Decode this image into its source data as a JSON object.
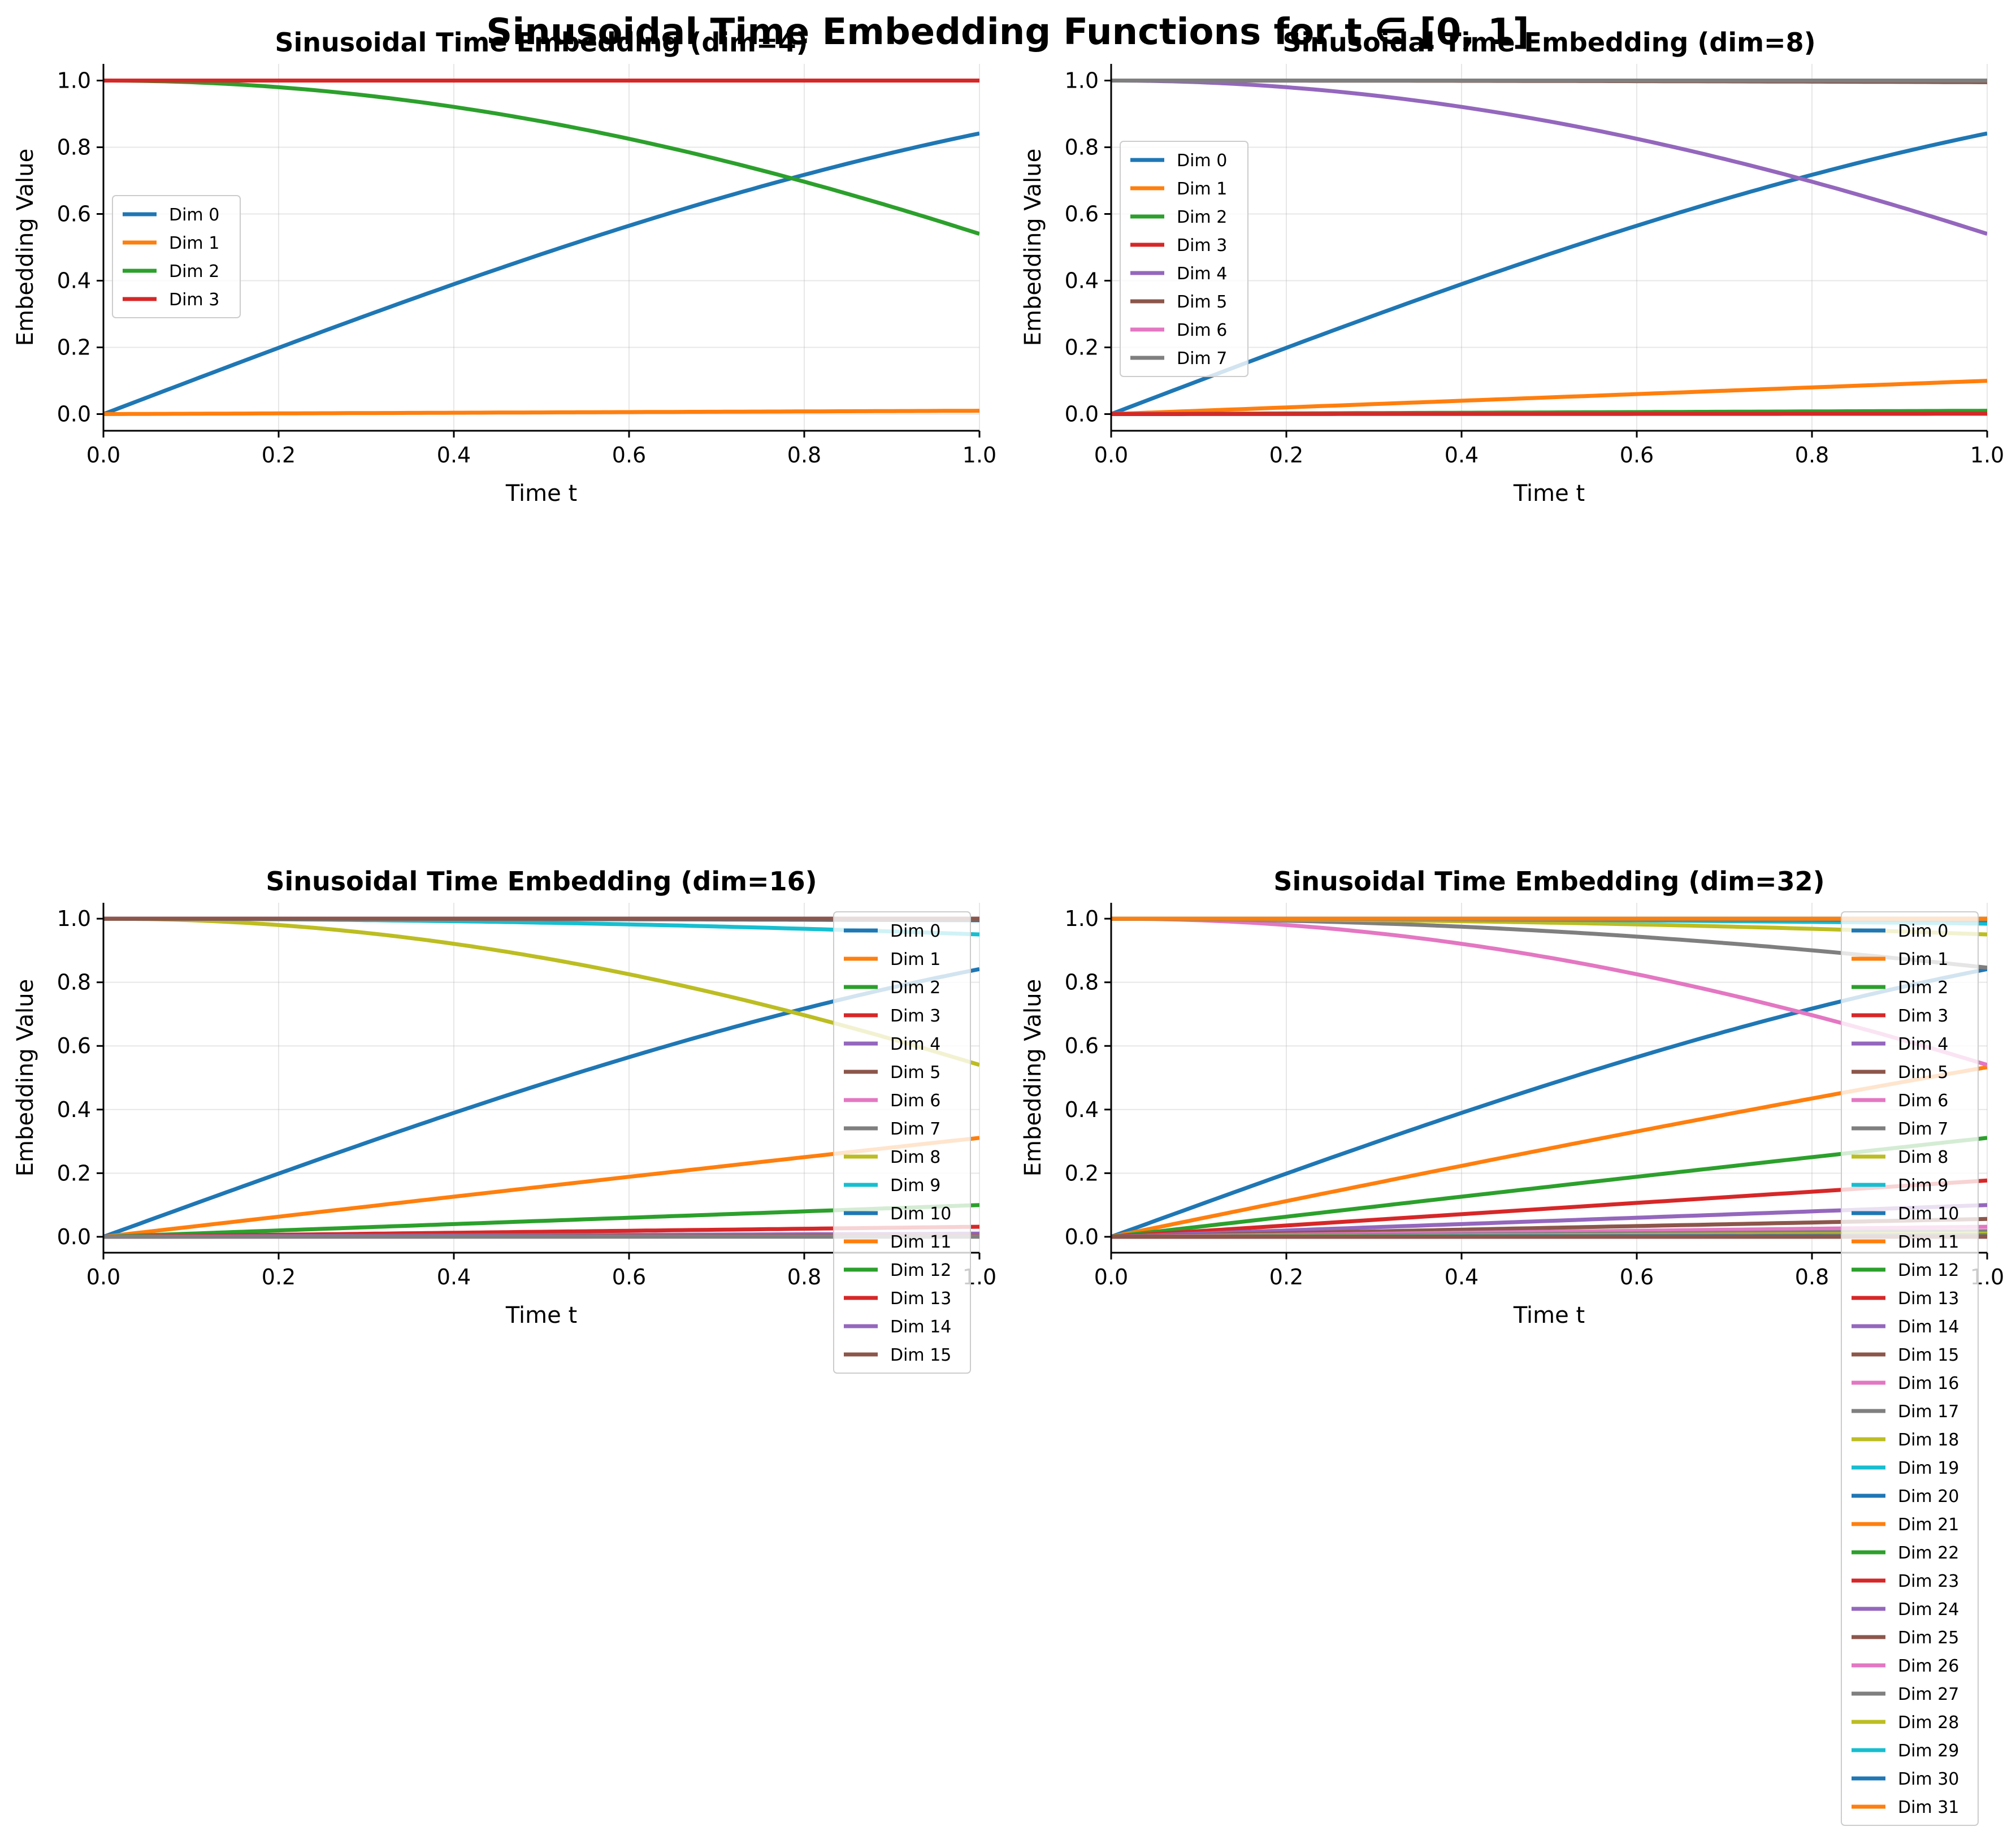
{
  "figure": {
    "title": "Sinusoidal Time Embedding Functions for t ∈ [0, 1]"
  },
  "palette": [
    "#1f77b4",
    "#ff7f0e",
    "#2ca02c",
    "#d62728",
    "#9467bd",
    "#8c564b",
    "#e377c2",
    "#7f7f7f",
    "#bcbd22",
    "#17becf"
  ],
  "chart_data": [
    {
      "type": "line",
      "title": "Sinusoidal Time Embedding (dim=4)",
      "xlabel": "Time t",
      "ylabel": "Embedding Value",
      "xlim": [
        0,
        1
      ],
      "ylim": [
        -0.05,
        1.05
      ],
      "x_ticks": [
        "0.0",
        "0.2",
        "0.4",
        "0.6",
        "0.8",
        "1.0"
      ],
      "y_ticks": [
        "0.0",
        "0.2",
        "0.4",
        "0.6",
        "0.8",
        "1.0"
      ],
      "grid": true,
      "legend_position": "center-left",
      "dim": 4,
      "x": [
        0,
        0.1,
        0.2,
        0.3,
        0.4,
        0.5,
        0.6,
        0.7,
        0.8,
        0.9,
        1.0
      ],
      "series_names": [
        "Dim 0",
        "Dim 1",
        "Dim 2",
        "Dim 3"
      ]
    },
    {
      "type": "line",
      "title": "Sinusoidal Time Embedding (dim=8)",
      "xlabel": "Time t",
      "ylabel": "Embedding Value",
      "xlim": [
        0,
        1
      ],
      "ylim": [
        -0.05,
        1.05
      ],
      "x_ticks": [
        "0.0",
        "0.2",
        "0.4",
        "0.6",
        "0.8",
        "1.0"
      ],
      "y_ticks": [
        "0.0",
        "0.2",
        "0.4",
        "0.6",
        "0.8",
        "1.0"
      ],
      "grid": true,
      "legend_position": "center-left",
      "dim": 8,
      "x": [
        0,
        0.1,
        0.2,
        0.3,
        0.4,
        0.5,
        0.6,
        0.7,
        0.8,
        0.9,
        1.0
      ],
      "series_names": [
        "Dim 0",
        "Dim 1",
        "Dim 2",
        "Dim 3",
        "Dim 4",
        "Dim 5",
        "Dim 6",
        "Dim 7"
      ]
    },
    {
      "type": "line",
      "title": "Sinusoidal Time Embedding (dim=16)",
      "xlabel": "Time t",
      "ylabel": "Embedding Value",
      "xlim": [
        0,
        1
      ],
      "ylim": [
        -0.05,
        1.05
      ],
      "x_ticks": [
        "0.0",
        "0.2",
        "0.4",
        "0.6",
        "0.8",
        "1.0"
      ],
      "y_ticks": [
        "0.0",
        "0.2",
        "0.4",
        "0.6",
        "0.8",
        "1.0"
      ],
      "grid": true,
      "legend_position": "upper-right",
      "dim": 16,
      "x": [
        0,
        0.1,
        0.2,
        0.3,
        0.4,
        0.5,
        0.6,
        0.7,
        0.8,
        0.9,
        1.0
      ],
      "series_names": [
        "Dim 0",
        "Dim 1",
        "Dim 2",
        "Dim 3",
        "Dim 4",
        "Dim 5",
        "Dim 6",
        "Dim 7",
        "Dim 8",
        "Dim 9",
        "Dim 10",
        "Dim 11",
        "Dim 12",
        "Dim 13",
        "Dim 14",
        "Dim 15"
      ]
    },
    {
      "type": "line",
      "title": "Sinusoidal Time Embedding (dim=32)",
      "xlabel": "Time t",
      "ylabel": "Embedding Value",
      "xlim": [
        0,
        1
      ],
      "ylim": [
        -0.05,
        1.05
      ],
      "x_ticks": [
        "0.0",
        "0.2",
        "0.4",
        "0.6",
        "0.8",
        "1.0"
      ],
      "y_ticks": [
        "0.0",
        "0.2",
        "0.4",
        "0.6",
        "0.8",
        "1.0"
      ],
      "grid": true,
      "legend_position": "upper-right",
      "dim": 32,
      "x": [
        0,
        0.1,
        0.2,
        0.3,
        0.4,
        0.5,
        0.6,
        0.7,
        0.8,
        0.9,
        1.0
      ],
      "series_names": [
        "Dim 0",
        "Dim 1",
        "Dim 2",
        "Dim 3",
        "Dim 4",
        "Dim 5",
        "Dim 6",
        "Dim 7",
        "Dim 8",
        "Dim 9",
        "Dim 10",
        "Dim 11",
        "Dim 12",
        "Dim 13",
        "Dim 14",
        "Dim 15",
        "Dim 16",
        "Dim 17",
        "Dim 18",
        "Dim 19",
        "Dim 20",
        "Dim 21",
        "Dim 22",
        "Dim 23",
        "Dim 24",
        "Dim 25",
        "Dim 26",
        "Dim 27",
        "Dim 28",
        "Dim 29",
        "Dim 30",
        "Dim 31"
      ]
    }
  ]
}
